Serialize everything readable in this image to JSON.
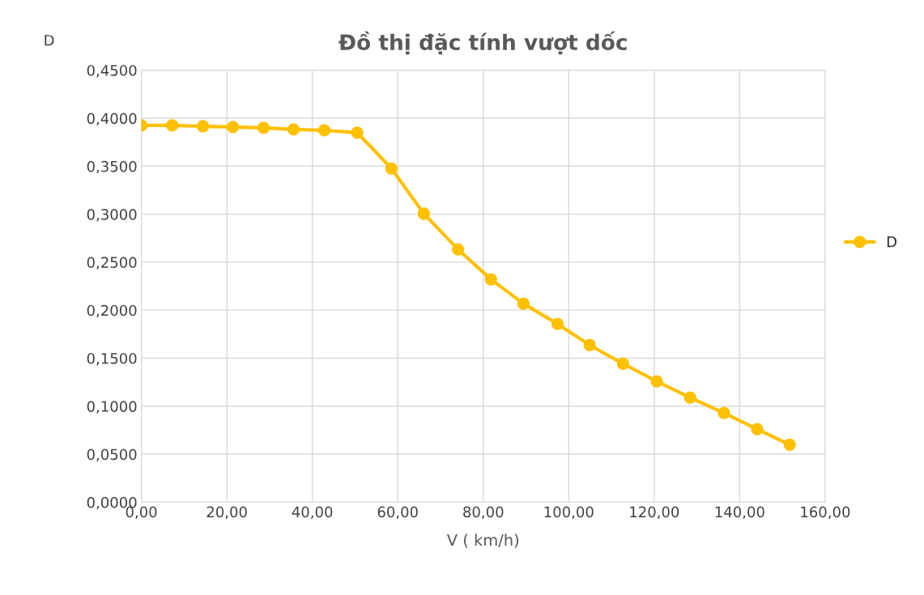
{
  "chart_data": {
    "type": "line",
    "title": "Đồ thị đặc tính vượt dốc",
    "xlabel": "V ( km/h)",
    "ylabel": "D",
    "x": [
      0,
      7.2,
      14.4,
      21.4,
      28.6,
      35.6,
      42.8,
      50.5,
      58.5,
      66.1,
      74.1,
      81.8,
      89.4,
      97.4,
      104.9,
      112.7,
      120.6,
      128.4,
      136.3,
      144.1,
      151.7
    ],
    "series": [
      {
        "name": "D",
        "color": "#ffc000",
        "values": [
          0.3925,
          0.3925,
          0.3916,
          0.3908,
          0.39,
          0.3883,
          0.3874,
          0.385,
          0.3477,
          0.3005,
          0.2633,
          0.2321,
          0.2068,
          0.1857,
          0.1637,
          0.1443,
          0.1258,
          0.1089,
          0.0929,
          0.076,
          0.0599
        ]
      }
    ],
    "xlim": [
      0,
      160
    ],
    "xticks": [
      {
        "value": 0,
        "label": "0,00"
      },
      {
        "value": 20,
        "label": "20,00"
      },
      {
        "value": 40,
        "label": "40,00"
      },
      {
        "value": 60,
        "label": "60,00"
      },
      {
        "value": 80,
        "label": "80,00"
      },
      {
        "value": 100,
        "label": "100,00"
      },
      {
        "value": 120,
        "label": "120,00"
      },
      {
        "value": 140,
        "label": "140,00"
      },
      {
        "value": 160,
        "label": "160,00"
      }
    ],
    "ylim": [
      0,
      0.45
    ],
    "yticks": [
      {
        "value": 0,
        "label": "0,0000"
      },
      {
        "value": 0.05,
        "label": "0,0500"
      },
      {
        "value": 0.1,
        "label": "0,1000"
      },
      {
        "value": 0.15,
        "label": "0,1500"
      },
      {
        "value": 0.2,
        "label": "0,2000"
      },
      {
        "value": 0.25,
        "label": "0,2500"
      },
      {
        "value": 0.3,
        "label": "0,3000"
      },
      {
        "value": 0.35,
        "label": "0,3500"
      },
      {
        "value": 0.4,
        "label": "0,4000"
      },
      {
        "value": 0.45,
        "label": "0,4500"
      }
    ],
    "grid": true,
    "legend": "right",
    "marker": "circle",
    "line_style": "solid"
  }
}
